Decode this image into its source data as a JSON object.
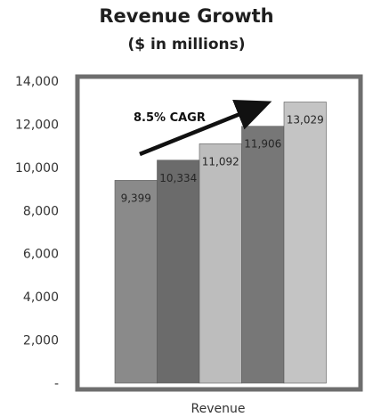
{
  "chart_data": {
    "type": "bar",
    "title": "Revenue Growth",
    "subtitle": "($ in millions)",
    "xlabel": "Revenue",
    "ylabel": "",
    "ylim": [
      0,
      14000
    ],
    "yticks": [
      {
        "value": 0,
        "label": "-"
      },
      {
        "value": 2000,
        "label": "2,000"
      },
      {
        "value": 4000,
        "label": "4,000"
      },
      {
        "value": 6000,
        "label": "6,000"
      },
      {
        "value": 8000,
        "label": "8,000"
      },
      {
        "value": 10000,
        "label": "10,000"
      },
      {
        "value": 12000,
        "label": "12,000"
      },
      {
        "value": 14000,
        "label": "14,000"
      }
    ],
    "series": [
      {
        "value": 9399,
        "label": "9,399",
        "color": "#8a8a8a"
      },
      {
        "value": 10334,
        "label": "10,334",
        "color": "#6b6b6b"
      },
      {
        "value": 11092,
        "label": "11,092",
        "color": "#bdbdbd"
      },
      {
        "value": 11906,
        "label": "11,906",
        "color": "#777777"
      },
      {
        "value": 13029,
        "label": "13,029",
        "color": "#c4c4c4"
      }
    ],
    "annotation": "8.5% CAGR",
    "grid": false,
    "legend": "none"
  }
}
